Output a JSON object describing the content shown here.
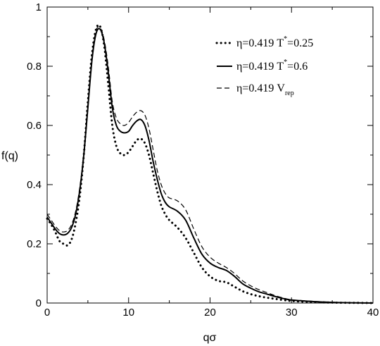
{
  "chart_data": {
    "type": "line",
    "xlabel": "qσ",
    "ylabel": "f(q)",
    "xlim": [
      0,
      40
    ],
    "ylim": [
      0,
      1
    ],
    "xticks": [
      0,
      10,
      20,
      30,
      40
    ],
    "yticks": [
      0,
      0.2,
      0.4,
      0.6,
      0.8,
      1
    ],
    "xtick_labels": [
      "0",
      "10",
      "20",
      "30",
      "40"
    ],
    "ytick_labels": [
      "0",
      "0.2",
      "0.4",
      "0.6",
      "0.8",
      "1"
    ],
    "grid": false,
    "legend_position": "top-right",
    "series": [
      {
        "name": "η=0.419 T*=0.25",
        "legend": {
          "main": "η=0.419 T",
          "sup": "*",
          "tail": "=0.25"
        },
        "style": "dotted",
        "x": [
          0,
          0.5,
          1,
          1.5,
          2,
          2.5,
          3,
          3.5,
          4,
          4.5,
          5,
          5.5,
          6,
          6.5,
          7,
          7.5,
          8,
          8.5,
          9,
          9.5,
          10,
          10.5,
          11,
          11.5,
          12,
          12.5,
          13,
          13.5,
          14,
          14.5,
          15,
          16,
          17,
          18,
          19,
          20,
          21,
          22,
          23,
          24,
          25,
          26,
          27,
          28,
          29,
          30,
          32,
          34,
          36,
          38,
          40
        ],
        "y": [
          0.285,
          0.265,
          0.24,
          0.21,
          0.2,
          0.195,
          0.215,
          0.27,
          0.36,
          0.5,
          0.68,
          0.84,
          0.925,
          0.935,
          0.87,
          0.74,
          0.6,
          0.53,
          0.505,
          0.5,
          0.51,
          0.53,
          0.55,
          0.555,
          0.54,
          0.5,
          0.44,
          0.38,
          0.33,
          0.3,
          0.28,
          0.255,
          0.22,
          0.17,
          0.12,
          0.09,
          0.075,
          0.07,
          0.055,
          0.04,
          0.03,
          0.023,
          0.018,
          0.014,
          0.01,
          0.007,
          0.004,
          0.002,
          0.001,
          0.0005,
          0
        ]
      },
      {
        "name": "η=0.419 T*=0.6",
        "legend": {
          "main": "η=0.419 T",
          "sup": "*",
          "tail": "=0.6"
        },
        "style": "solid",
        "x": [
          0,
          0.5,
          1,
          1.5,
          2,
          2.5,
          3,
          3.5,
          4,
          4.5,
          5,
          5.5,
          6,
          6.5,
          7,
          7.5,
          8,
          8.5,
          9,
          9.5,
          10,
          10.5,
          11,
          11.5,
          12,
          12.5,
          13,
          13.5,
          14,
          14.5,
          15,
          16,
          17,
          18,
          19,
          20,
          21,
          22,
          23,
          24,
          25,
          26,
          27,
          28,
          29,
          30,
          32,
          34,
          36,
          38,
          40
        ],
        "y": [
          0.29,
          0.27,
          0.25,
          0.235,
          0.23,
          0.235,
          0.255,
          0.3,
          0.38,
          0.5,
          0.66,
          0.82,
          0.91,
          0.925,
          0.88,
          0.78,
          0.66,
          0.6,
          0.58,
          0.575,
          0.58,
          0.6,
          0.615,
          0.62,
          0.6,
          0.55,
          0.48,
          0.42,
          0.37,
          0.34,
          0.325,
          0.31,
          0.28,
          0.22,
          0.165,
          0.135,
          0.12,
          0.11,
          0.09,
          0.065,
          0.05,
          0.038,
          0.03,
          0.022,
          0.015,
          0.01,
          0.006,
          0.003,
          0.0015,
          0.0007,
          0
        ]
      },
      {
        "name": "η=0.419 Vrep",
        "legend": {
          "main": "η=0.419 V",
          "sub": "rep"
        },
        "style": "dashed",
        "x": [
          0,
          0.5,
          1,
          1.5,
          2,
          2.5,
          3,
          3.5,
          4,
          4.5,
          5,
          5.5,
          6,
          6.5,
          7,
          7.5,
          8,
          8.5,
          9,
          9.5,
          10,
          10.5,
          11,
          11.5,
          12,
          12.5,
          13,
          13.5,
          14,
          14.5,
          15,
          16,
          17,
          18,
          19,
          20,
          21,
          22,
          23,
          24,
          25,
          26,
          27,
          28,
          29,
          30,
          32,
          34,
          36,
          38,
          40
        ],
        "y": [
          0.3,
          0.28,
          0.26,
          0.245,
          0.24,
          0.245,
          0.265,
          0.31,
          0.39,
          0.51,
          0.67,
          0.83,
          0.92,
          0.93,
          0.89,
          0.8,
          0.68,
          0.625,
          0.605,
          0.6,
          0.61,
          0.63,
          0.645,
          0.65,
          0.635,
          0.59,
          0.52,
          0.45,
          0.4,
          0.37,
          0.355,
          0.345,
          0.315,
          0.25,
          0.19,
          0.155,
          0.135,
          0.12,
          0.1,
          0.075,
          0.058,
          0.045,
          0.035,
          0.025,
          0.017,
          0.011,
          0.007,
          0.004,
          0.002,
          0.001,
          0
        ]
      }
    ]
  }
}
